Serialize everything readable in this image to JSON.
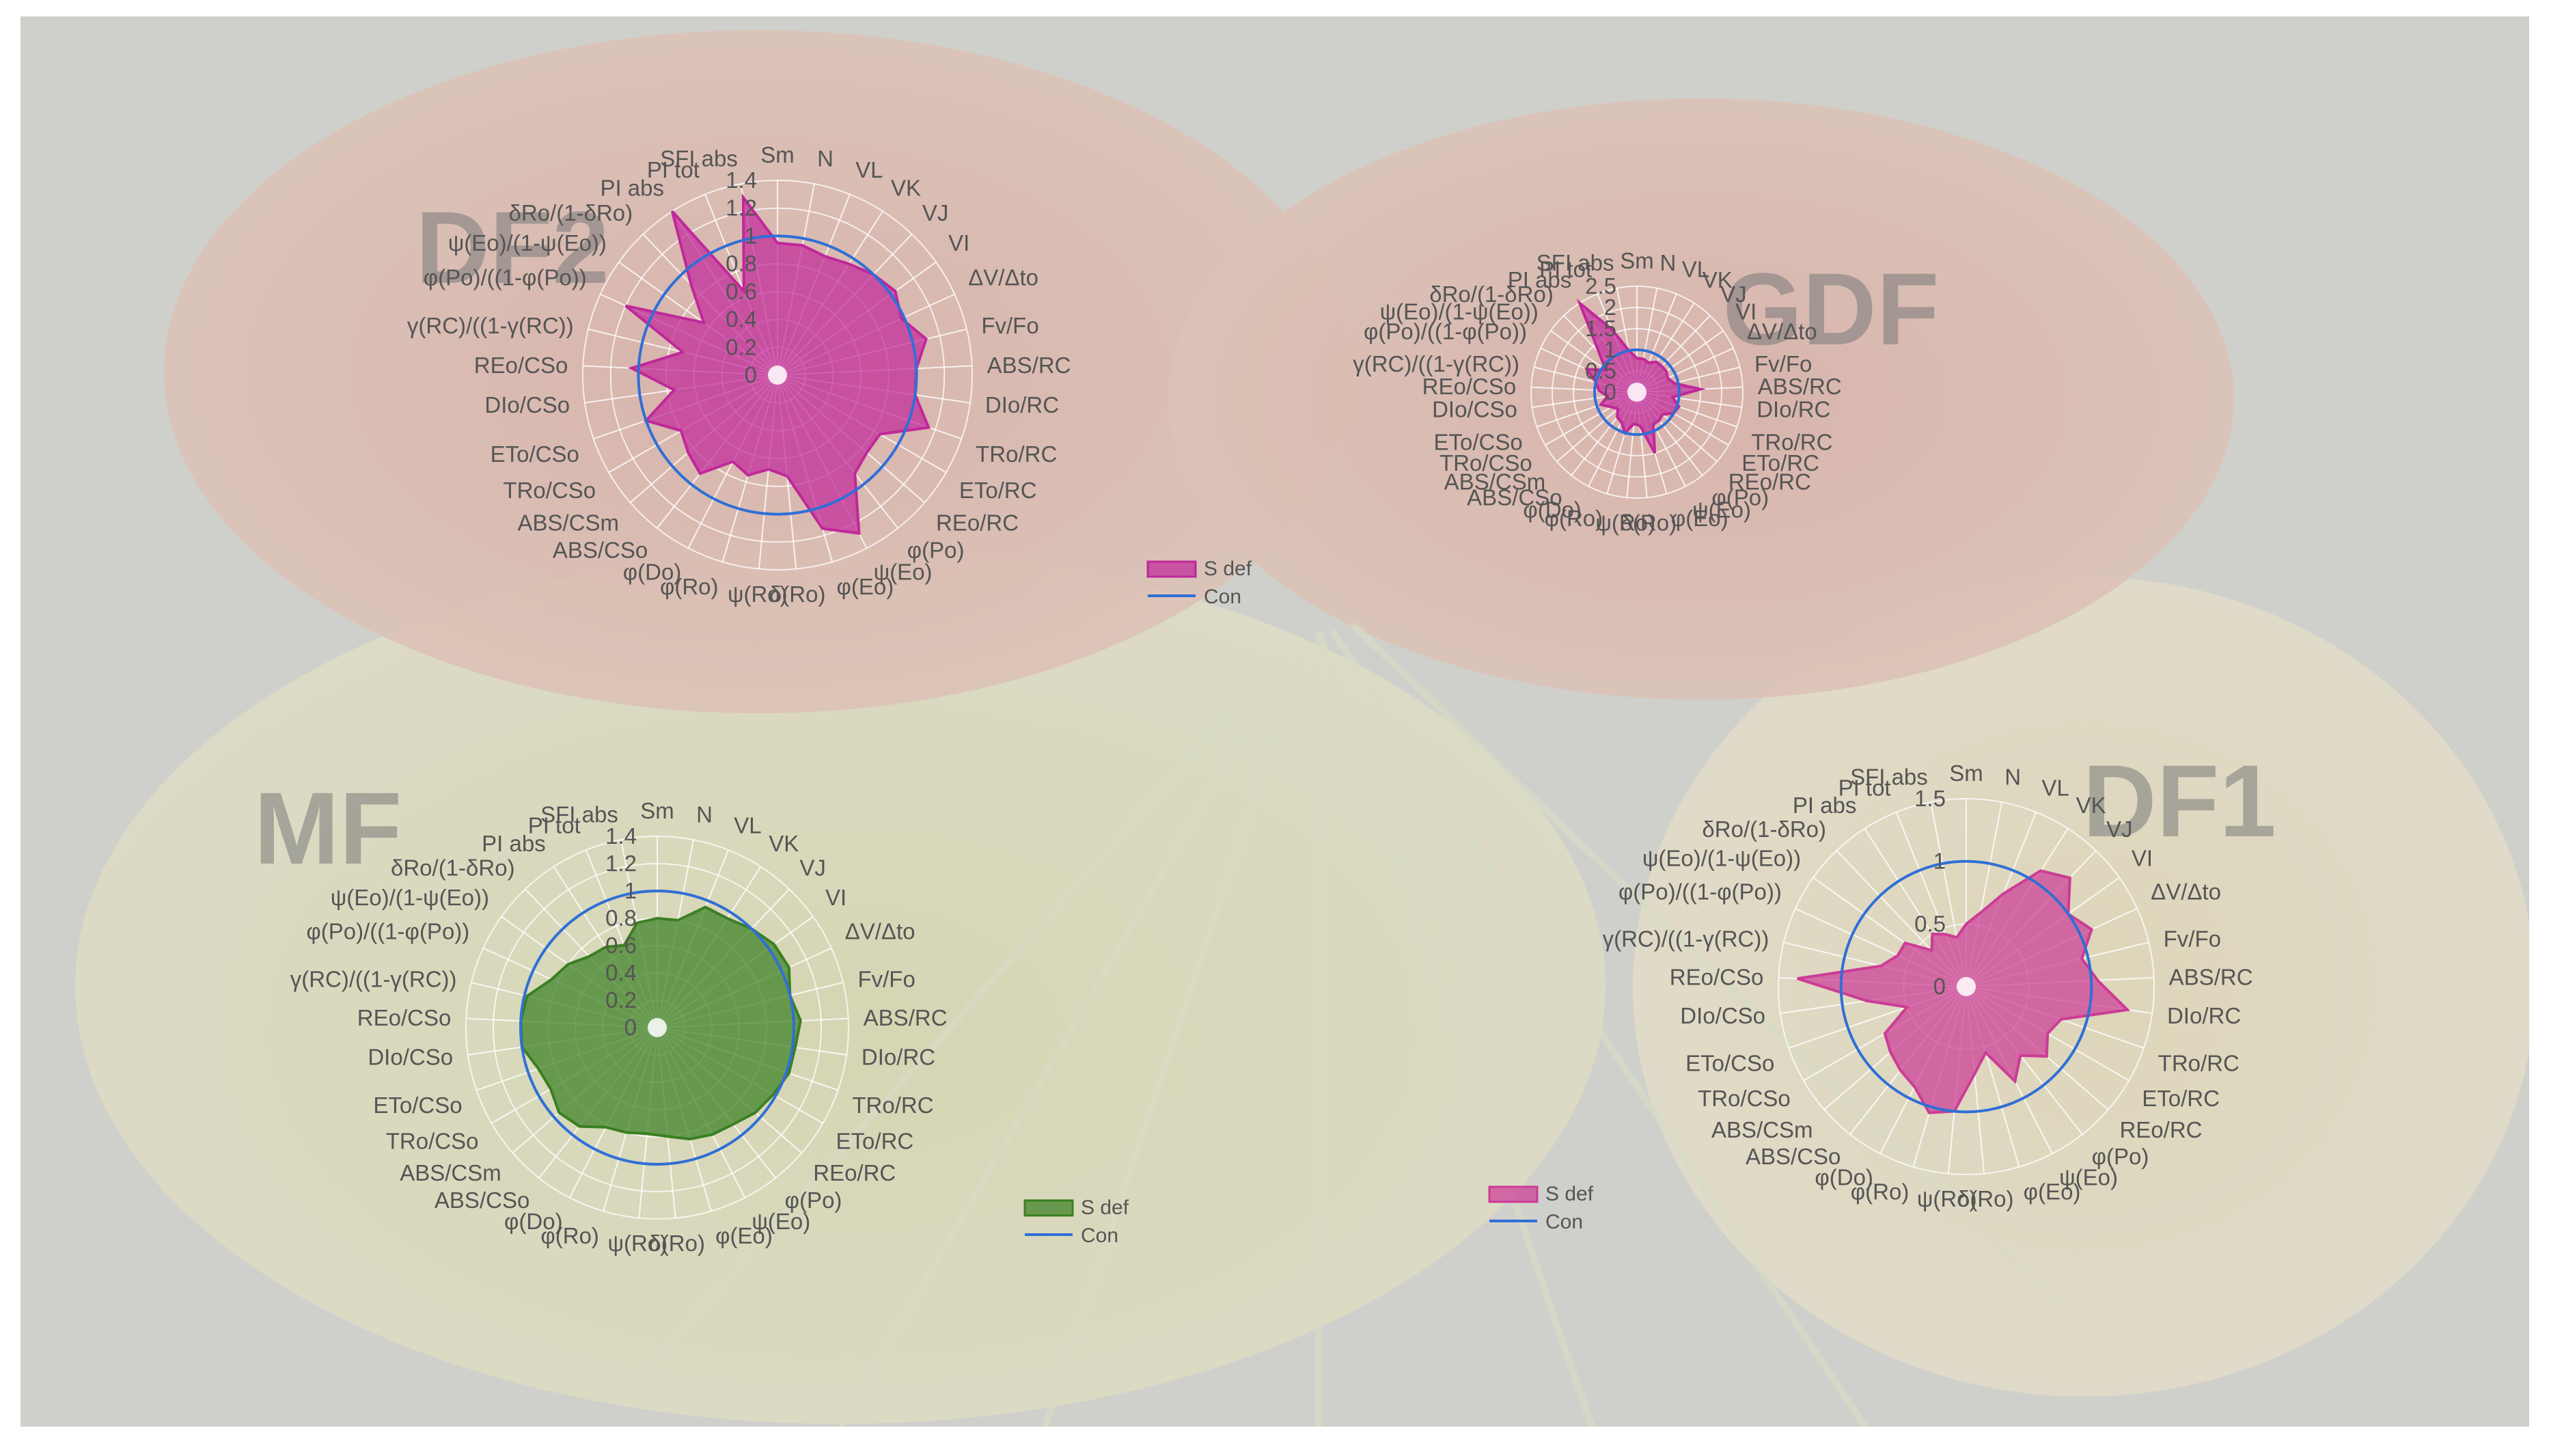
{
  "figure": {
    "panel_labels": [
      "DF2",
      "GDF",
      "MF",
      "DF1"
    ],
    "colors": {
      "magenta": "#c0289a",
      "pink": "#cc3c96",
      "green": "#3a7f22",
      "con": "#2f6fd6",
      "watermark": "#7a7a7a"
    },
    "icons": [
      "leaf-photo-background"
    ]
  },
  "chart_data": [
    {
      "id": "DF2",
      "type": "radar",
      "panel_label": "DF2",
      "categories": [
        "Sm",
        "N",
        "VL",
        "VK",
        "VJ",
        "VI",
        "ΔV/Δto",
        "Fv/Fo",
        "ABS/RC",
        "DIo/RC",
        "TRo/RC",
        "ETo/RC",
        "REo/RC",
        "φ(Po)",
        "ψ(Eo)",
        "φ(Eo)",
        "δ(Ro)",
        "ψ(Ro)",
        "φ(Ro)",
        "φ(Do)",
        "ABS/CSo",
        "ABS/CSm",
        "TRo/CSo",
        "ETo/CSo",
        "DIo/CSo",
        "REo/CSo",
        "γ(RC)/((1-γ(RC))",
        "φ(Po)/((1-φ(Po))",
        "ψ(Eo)/(1-ψ(Eo))",
        "δRo/(1-δRo)",
        "PI abs",
        "PI tot",
        "SFI abs"
      ],
      "r_ticks": [
        "0",
        "0.2",
        "0.4",
        "0.6",
        "0.8",
        "1",
        "1.2",
        "1.4"
      ],
      "rmax": 1.4,
      "series": [
        {
          "name": "S def",
          "kind": "fill",
          "color": "#c0289a",
          "values": [
            0.95,
            0.95,
            0.92,
            0.95,
            1.0,
            1.04,
            0.98,
            1.1,
            1.0,
            1.0,
            1.15,
            0.85,
            0.85,
            0.9,
            1.28,
            1.15,
            0.73,
            0.68,
            0.75,
            0.7,
            0.9,
            0.85,
            0.8,
            1.0,
            0.75,
            1.05,
            0.7,
            1.2,
            0.65,
            0.9,
            1.4,
            0.65,
            1.3
          ]
        },
        {
          "name": "Con",
          "kind": "line",
          "color": "#2f6fd6",
          "values": "all 1"
        }
      ]
    },
    {
      "id": "GDF",
      "type": "radar",
      "panel_label": "GDF",
      "categories": [
        "Sm",
        "N",
        "VL",
        "VK",
        "VJ",
        "VI",
        "ΔV/Δto",
        "Fv/Fo",
        "ABS/RC",
        "DIo/RC",
        "TRo/RC",
        "ETo/RC",
        "REo/RC",
        "φ(Po)",
        "ψ(Eo)",
        "φ(Eo)",
        "δ(Ro)",
        "ψ(Ro)",
        "φ(Ro)",
        "φ(Do)",
        "ABS/CSo",
        "ABS/CSm",
        "TRo/CSo",
        "ETo/CSo",
        "DIo/CSo",
        "REo/CSo",
        "γ(RC)/((1-γ(RC))",
        "φ(Po)/((1-φ(Po))",
        "ψ(Eo)/(1-ψ(Eo))",
        "δRo/(1-δRo)",
        "PI abs",
        "PI tot",
        "SFI abs"
      ],
      "r_ticks": [
        "0",
        "0.5",
        "1",
        "1.5",
        "2",
        "2.5"
      ],
      "rmax": 2.5,
      "series": [
        {
          "name": "S def",
          "kind": "fill",
          "color": "#c0289a",
          "values": [
            0.8,
            0.8,
            0.75,
            0.85,
            0.85,
            0.85,
            0.8,
            0.9,
            1.5,
            0.85,
            1.05,
            1.0,
            0.8,
            0.85,
            0.85,
            1.5,
            0.8,
            0.75,
            1.0,
            0.8,
            0.75,
            0.6,
            0.7,
            0.9,
            0.7,
            0.9,
            1.0,
            1.3,
            0.9,
            1.3,
            2.5,
            1.6,
            1.0
          ]
        },
        {
          "name": "Con",
          "kind": "line",
          "color": "#2f6fd6",
          "values": "all 1"
        }
      ]
    },
    {
      "id": "MF",
      "type": "radar",
      "panel_label": "MF",
      "categories": [
        "Sm",
        "N",
        "VL",
        "VK",
        "VJ",
        "VI",
        "ΔV/Δto",
        "Fv/Fo",
        "ABS/RC",
        "DIo/RC",
        "TRo/RC",
        "ETo/RC",
        "REo/RC",
        "φ(Po)",
        "ψ(Eo)",
        "φ(Eo)",
        "δ(Ro)",
        "ψ(Ro)",
        "φ(Ro)",
        "φ(Do)",
        "ABS/CSo",
        "ABS/CSm",
        "TRo/CSo",
        "ETo/CSo",
        "DIo/CSo",
        "REo/CSo",
        "γ(RC)/((1-γ(RC))",
        "φ(Po)/((1-φ(Po))",
        "ψ(Eo)/(1-ψ(Eo))",
        "δRo/(1-δRo)",
        "PI abs",
        "PI tot",
        "SFI abs"
      ],
      "r_ticks": [
        "0",
        "0.2",
        "0.4",
        "0.6",
        "0.8",
        "1",
        "1.2",
        "1.4"
      ],
      "rmax": 1.4,
      "series": [
        {
          "name": "S def",
          "kind": "fill",
          "color": "#3a7f22",
          "values": [
            0.8,
            0.8,
            0.95,
            0.95,
            1.0,
            1.05,
            1.06,
            1.0,
            1.05,
            1.02,
            1.02,
            0.98,
            0.95,
            0.9,
            0.88,
            0.85,
            0.8,
            0.78,
            0.8,
            0.82,
            0.92,
            0.95,
            0.9,
            0.92,
            1.0,
            1.0,
            0.98,
            0.85,
            0.8,
            0.72,
            0.7,
            0.65,
            0.78
          ]
        },
        {
          "name": "Con",
          "kind": "line",
          "color": "#2f6fd6",
          "values": "all 1"
        }
      ]
    },
    {
      "id": "DF1",
      "type": "radar",
      "panel_label": "DF1",
      "categories": [
        "Sm",
        "N",
        "VL",
        "VK",
        "VJ",
        "VI",
        "ΔV/Δto",
        "Fv/Fo",
        "ABS/RC",
        "DIo/RC",
        "TRo/RC",
        "ETo/RC",
        "REo/RC",
        "φ(Po)",
        "ψ(Eo)",
        "φ(Eo)",
        "δ(Ro)",
        "ψ(Ro)",
        "φ(Ro)",
        "φ(Do)",
        "ABS/CSo",
        "ABS/CSm",
        "TRo/CSo",
        "ETo/CSo",
        "DIo/CSo",
        "REo/CSo",
        "γ(RC)/((1-γ(RC))",
        "φ(Po)/((1-φ(Po))",
        "ψ(Eo)/(1-ψ(Eo))",
        "δRo/(1-δRo)",
        "PI abs",
        "PI tot",
        "SFI abs"
      ],
      "r_ticks": [
        "0",
        "0.5",
        "1",
        "1.5"
      ],
      "rmax": 1.5,
      "series": [
        {
          "name": "S def",
          "kind": "fill",
          "color": "#cc3c96",
          "values": [
            0.5,
            0.6,
            0.8,
            1.1,
            1.2,
            1.0,
            1.1,
            0.95,
            1.05,
            1.3,
            0.8,
            0.75,
            0.85,
            0.7,
            0.85,
            0.55,
            0.7,
            1.0,
            1.05,
            0.9,
            0.85,
            0.8,
            0.75,
            0.5,
            0.8,
            1.35,
            0.7,
            0.6,
            0.6,
            0.4,
            0.5,
            0.45,
            0.4
          ]
        },
        {
          "name": "Con",
          "kind": "line",
          "color": "#2f6fd6",
          "values": "all 1"
        }
      ]
    }
  ]
}
